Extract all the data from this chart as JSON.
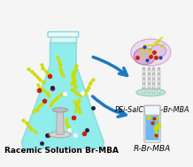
{
  "bg_color": "#f5f5f5",
  "flask_fill_color": "#7eecea",
  "flask_outline_color": "#b0e0e0",
  "arrow_color": "#1a7abf",
  "label_flask": "Racemic Solution Br-MBA",
  "label_top_right": "PSi-SalCav•S-Br-MBA",
  "label_bottom_right": "R-Br-MBA",
  "label_fontsize": 7.5,
  "label_fontstyle_right": "italic",
  "dot_colors_yellow": "#ccdd00",
  "dot_colors_red": "#cc2200",
  "dot_colors_dark": "#222244",
  "dot_colors_blue": "#1155cc",
  "psi_disk_color": "#b8e8d8",
  "psi_pillar_color": "#c0c0c0",
  "tube_fill": "#2266cc",
  "tube_outline": "#aaaaaa"
}
